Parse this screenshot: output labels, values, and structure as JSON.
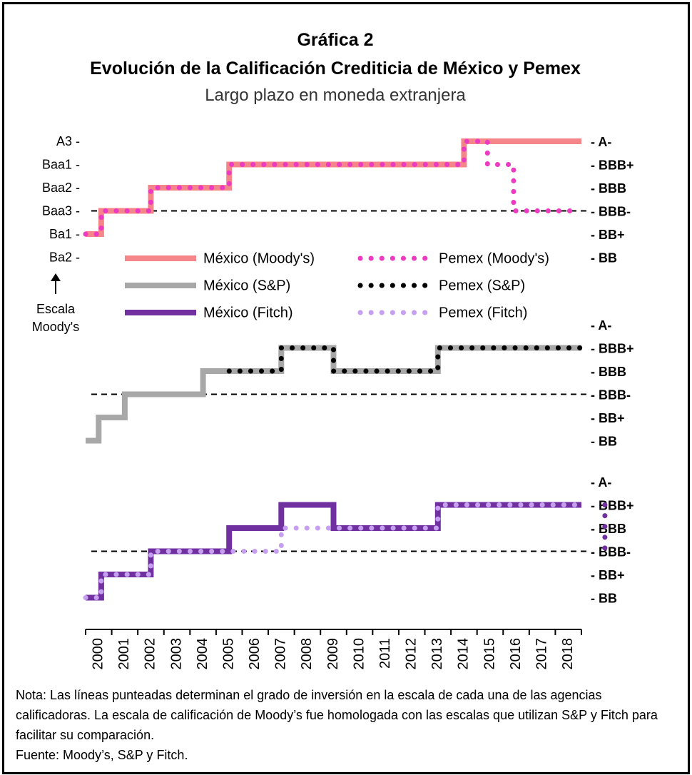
{
  "title": "Gráfica 2",
  "subtitle": "Evolución de la Calificación Crediticia de México y Pemex",
  "subtitle2": "Largo plazo en moneda extranjera",
  "moodys_scale_label": [
    "Escala",
    "Moody's"
  ],
  "notes": {
    "nota": "Nota: Las líneas punteadas determinan el grado de inversión en la escala de cada una de las agencias calificadoras. La escala de calificación de Moody’s fue homologada con las escalas que utilizan S&P y Fitch para facilitar su comparación.",
    "fuente": "Fuente: Moody’s, S&P y Fitch."
  },
  "colors": {
    "mexico_moodys": "#f4868a",
    "pemex_moodys": "#ec3bc0",
    "mexico_sp": "#a8a8a8",
    "pemex_sp": "#000000",
    "mexico_fitch": "#7030a0",
    "pemex_fitch": "#c69ff0"
  },
  "chart_data": {
    "type": "line",
    "x_ticks": [
      "2000",
      "2001",
      "2002",
      "2003",
      "2004",
      "2005",
      "2006",
      "2007",
      "2008",
      "2009",
      "2010",
      "2011",
      "2012",
      "2013",
      "2014",
      "2015",
      "2016",
      "2017",
      "2018"
    ],
    "xlim": [
      2000,
      2019
    ],
    "legend": [
      {
        "name": "México (Moody's)",
        "style": "solid",
        "color_key": "mexico_moodys"
      },
      {
        "name": "Pemex (Moody's)",
        "style": "dotted",
        "color_key": "pemex_moodys"
      },
      {
        "name": "México (S&P)",
        "style": "solid",
        "color_key": "mexico_sp"
      },
      {
        "name": "Pemex (S&P)",
        "style": "dotted",
        "color_key": "pemex_sp"
      },
      {
        "name": "México (Fitch)",
        "style": "solid",
        "color_key": "mexico_fitch"
      },
      {
        "name": "Pemex (Fitch)",
        "style": "dotted",
        "color_key": "pemex_fitch"
      }
    ],
    "panels": [
      {
        "agency": "Moody's",
        "left_labels": [
          "A3 -",
          "Baa1 -",
          "Baa2 -",
          "Baa3 -",
          "Ba1 -",
          "Ba2 -"
        ],
        "right_labels": [
          "- A-",
          "- BBB+",
          "- BBB",
          "- BBB-",
          "- BB+",
          "- BB"
        ],
        "investment_grade_level": 3,
        "series": [
          {
            "name": "México (Moody's)",
            "style": "solid",
            "color_key": "mexico_moodys",
            "x": [
              2000,
              2000.6,
              2000.6,
              2002.5,
              2002.5,
              2005.5,
              2005.5,
              2014.5,
              2014.5,
              2019
            ],
            "y": [
              4,
              4,
              3,
              3,
              2,
              2,
              1,
              1,
              0,
              0
            ]
          },
          {
            "name": "Pemex (Moody's)",
            "style": "dotted",
            "color_key": "pemex_moodys",
            "x": [
              2000,
              2000.6,
              2000.6,
              2002.5,
              2002.5,
              2005.5,
              2005.5,
              2014.5,
              2014.5,
              2015.4,
              2015.4,
              2016.4,
              2016.4,
              2018.8
            ],
            "y": [
              4,
              4,
              3,
              3,
              2,
              2,
              1,
              1,
              0,
              0,
              1,
              1,
              3,
              3
            ]
          }
        ]
      },
      {
        "agency": "S&P",
        "right_labels": [
          "- A-",
          "- BBB+",
          "- BBB",
          "- BBB-",
          "- BB+",
          "- BB"
        ],
        "investment_grade_level": 3,
        "series": [
          {
            "name": "México (S&P)",
            "style": "solid",
            "color_key": "mexico_sp",
            "x": [
              2000,
              2000.5,
              2000.5,
              2001.5,
              2001.5,
              2004.5,
              2004.5,
              2007.5,
              2007.5,
              2009.5,
              2009.5,
              2013.5,
              2013.5,
              2019
            ],
            "y": [
              5,
              5,
              4,
              4,
              3,
              3,
              2,
              2,
              1,
              1,
              2,
              2,
              1,
              1
            ]
          },
          {
            "name": "Pemex (S&P)",
            "style": "dotted",
            "color_key": "pemex_sp",
            "x": [
              2005.5,
              2007.5,
              2007.5,
              2009.5,
              2009.5,
              2013.5,
              2013.5,
              2019
            ],
            "y": [
              2,
              2,
              1,
              1,
              2,
              2,
              1,
              1
            ]
          }
        ]
      },
      {
        "agency": "Fitch",
        "right_labels": [
          "- A-",
          "- BBB+",
          "- BBB",
          "- BBB-",
          "- BB+",
          "- BB"
        ],
        "investment_grade_level": 3,
        "series": [
          {
            "name": "México (Fitch)",
            "style": "solid",
            "color_key": "mexico_fitch",
            "x": [
              2000,
              2000.6,
              2000.6,
              2002.5,
              2002.5,
              2005.5,
              2005.5,
              2007.5,
              2007.5,
              2009.5,
              2009.5,
              2013.5,
              2013.5,
              2019
            ],
            "y": [
              5,
              5,
              4,
              4,
              3,
              3,
              2,
              2,
              1,
              1,
              2,
              2,
              1,
              1
            ]
          },
          {
            "name": "Pemex (Fitch)",
            "style": "dotted",
            "color_key": "pemex_fitch",
            "x": [
              2000,
              2000.6,
              2000.6,
              2002.5,
              2002.5,
              2007.5,
              2007.5,
              2013.5,
              2013.5,
              2019
            ],
            "y": [
              5,
              5,
              4,
              4,
              3,
              3,
              2,
              2,
              1,
              1
            ]
          },
          {
            "name": "Pemex (Fitch) 2019",
            "style": "dotted",
            "color_key": "mexico_fitch",
            "x": [
              2019.9,
              2019.9
            ],
            "y": [
              1,
              3
            ]
          }
        ]
      }
    ]
  }
}
